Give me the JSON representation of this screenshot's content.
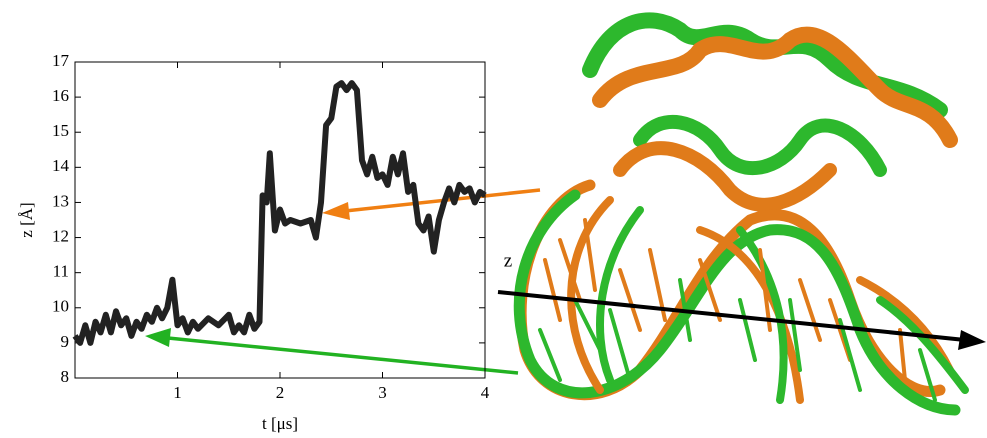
{
  "chart_data": {
    "type": "line",
    "x_label": "t [μs]",
    "y_label": "z [Å]",
    "xlim": [
      0,
      4
    ],
    "ylim": [
      8,
      17
    ],
    "xticks": [
      1,
      2,
      3,
      4
    ],
    "yticks": [
      8,
      9,
      10,
      11,
      12,
      13,
      14,
      15,
      16,
      17
    ],
    "x": [
      0,
      0.05,
      0.1,
      0.15,
      0.2,
      0.25,
      0.3,
      0.35,
      0.4,
      0.45,
      0.5,
      0.55,
      0.6,
      0.65,
      0.7,
      0.75,
      0.8,
      0.85,
      0.9,
      0.95,
      1.0,
      1.05,
      1.1,
      1.15,
      1.2,
      1.3,
      1.4,
      1.5,
      1.55,
      1.6,
      1.65,
      1.7,
      1.75,
      1.8,
      1.83,
      1.87,
      1.9,
      1.95,
      2.0,
      2.05,
      2.1,
      2.2,
      2.3,
      2.35,
      2.4,
      2.45,
      2.5,
      2.55,
      2.6,
      2.65,
      2.7,
      2.75,
      2.8,
      2.85,
      2.9,
      2.95,
      3.0,
      3.05,
      3.1,
      3.15,
      3.2,
      3.25,
      3.3,
      3.35,
      3.4,
      3.45,
      3.5,
      3.55,
      3.6,
      3.65,
      3.7,
      3.75,
      3.8,
      3.85,
      3.9,
      3.95,
      4.0
    ],
    "series": [
      {
        "color": "#222222",
        "values": [
          9.2,
          9.0,
          9.5,
          9.0,
          9.6,
          9.3,
          9.8,
          9.3,
          9.9,
          9.5,
          9.7,
          9.2,
          9.6,
          9.4,
          9.8,
          9.6,
          10.0,
          9.7,
          10.0,
          10.8,
          9.5,
          9.7,
          9.3,
          9.6,
          9.4,
          9.7,
          9.5,
          9.8,
          9.3,
          9.5,
          9.3,
          9.8,
          9.4,
          9.6,
          13.2,
          13.0,
          14.4,
          12.2,
          12.8,
          12.4,
          12.5,
          12.4,
          12.5,
          12.0,
          13.0,
          15.2,
          15.4,
          16.3,
          16.4,
          16.2,
          16.4,
          16.2,
          14.2,
          13.8,
          14.3,
          13.7,
          13.8,
          13.5,
          14.3,
          13.8,
          14.4,
          13.3,
          13.5,
          12.4,
          12.2,
          12.6,
          11.6,
          12.5,
          13.0,
          13.4,
          13.0,
          13.5,
          13.3,
          13.4,
          13.0,
          13.3,
          13.2
        ]
      }
    ]
  },
  "figure": {
    "axis_label": "z"
  }
}
